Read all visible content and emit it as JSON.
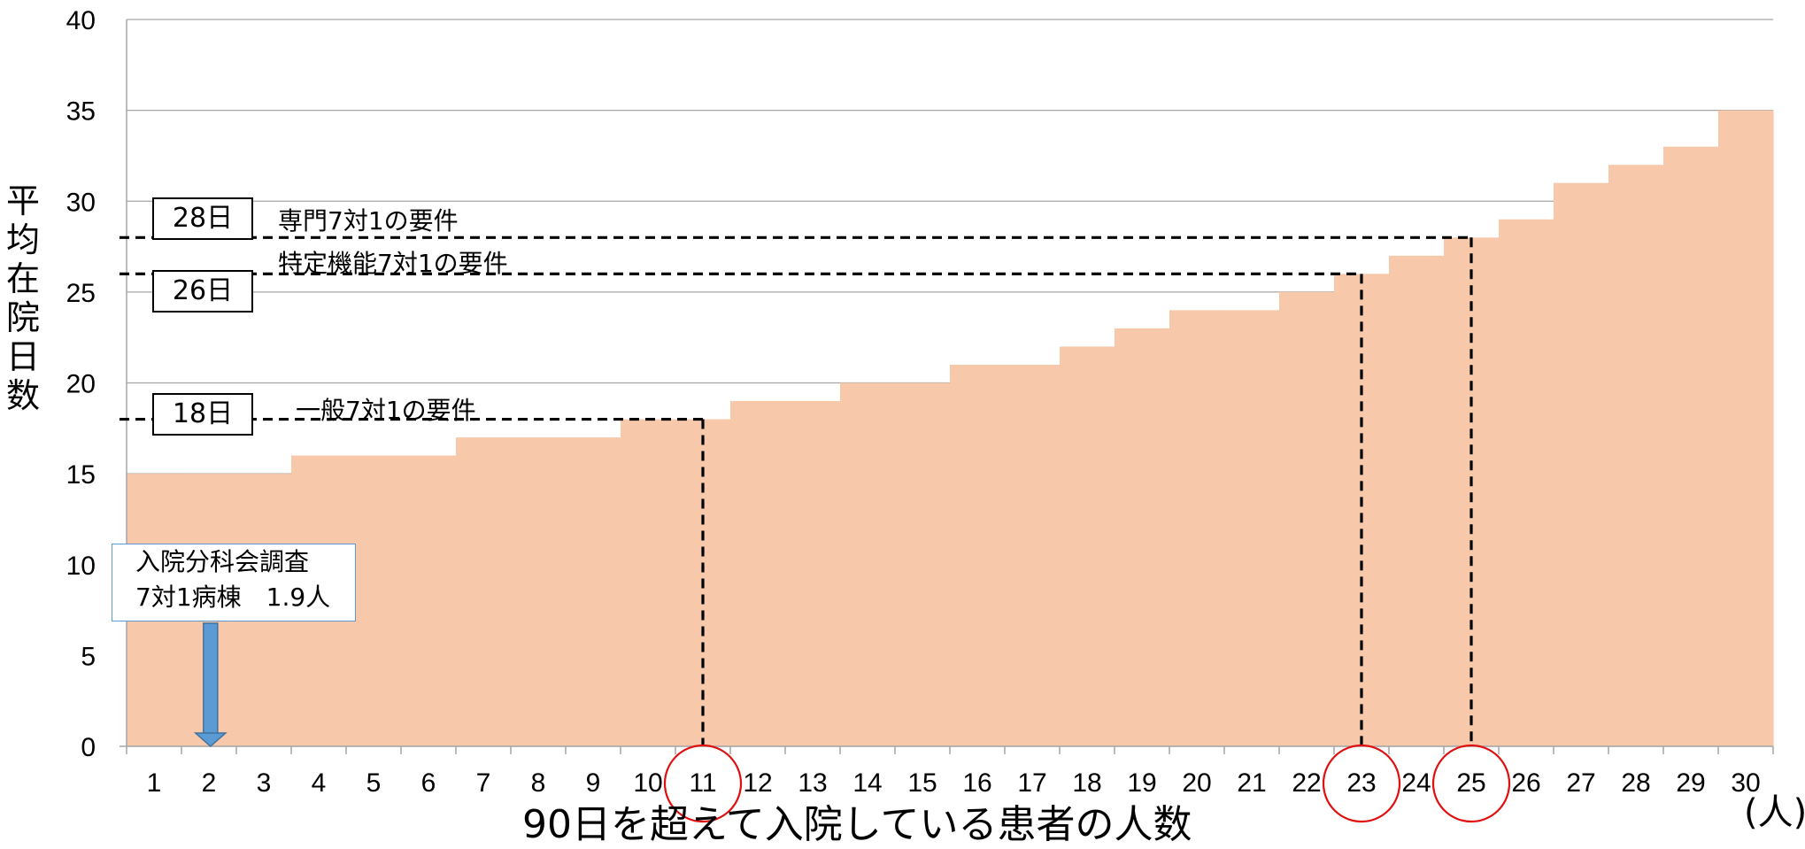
{
  "chart_data": {
    "type": "area",
    "title": "",
    "ylabel": "平均在院日数",
    "xlabel": "90日を超えて入院している患者の人数",
    "x_unit": "(人)",
    "ylim": [
      0,
      40
    ],
    "yticks": [
      "0",
      "5",
      "10",
      "15",
      "20",
      "25",
      "30",
      "35",
      "40"
    ],
    "x": [
      1,
      2,
      3,
      4,
      5,
      6,
      7,
      8,
      9,
      10,
      11,
      12,
      13,
      14,
      15,
      16,
      17,
      18,
      19,
      20,
      21,
      22,
      23,
      24,
      25,
      26,
      27,
      28,
      29,
      30
    ],
    "values": [
      15,
      15,
      15,
      16,
      16,
      16,
      17,
      17,
      17,
      18,
      18,
      19,
      19,
      20,
      20,
      21,
      21,
      22,
      23,
      24,
      24,
      25,
      26,
      27,
      28,
      29,
      31,
      32,
      33,
      35
    ],
    "grid": true,
    "fill_color": "#f7c8a9",
    "reference_lines": [
      {
        "box_label": "28日",
        "text": "専門7対1の要件",
        "y": 28,
        "x": 25
      },
      {
        "box_label": "26日",
        "text": "特定機能7対1の要件",
        "y": 26,
        "x": 23
      },
      {
        "box_label": "18日",
        "text": "一般7対1の要件",
        "y": 18,
        "x": 11
      }
    ],
    "highlighted_x": [
      "11",
      "23",
      "25"
    ],
    "callout": {
      "line1": "入院分科会調査",
      "line2": "7対1病棟　1.9人",
      "x": 1.9,
      "arrow_color": "#5b9bd5"
    }
  }
}
